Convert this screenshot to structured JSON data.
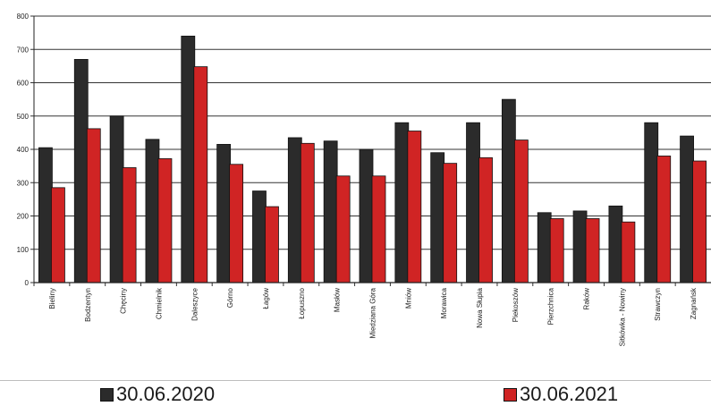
{
  "chart_data": {
    "type": "bar",
    "title": "",
    "xlabel": "",
    "ylabel": "",
    "ylim": [
      0,
      800
    ],
    "yticks": [
      0,
      100,
      200,
      300,
      400,
      500,
      600,
      700,
      800
    ],
    "grid": true,
    "legend_position": "bottom",
    "categories": [
      "Bieliny",
      "Bodzentyn",
      "Chęciny",
      "Chmielnik",
      "Daleszyce",
      "Górno",
      "Łagów",
      "Łopuszno",
      "Masłów",
      "Miedziana Góra",
      "Mniów",
      "Morawica",
      "Nowa Słupia",
      "Piekoszów",
      "Pierzchnica",
      "Raków",
      "Sitkówka - Nowiny",
      "Strawczyn",
      "Zagnańsk"
    ],
    "series": [
      {
        "name": "30.06.2020",
        "color": "#2b2b2b",
        "values": [
          405,
          670,
          500,
          430,
          740,
          415,
          275,
          435,
          425,
          400,
          480,
          390,
          480,
          550,
          210,
          215,
          230,
          480,
          440
        ]
      },
      {
        "name": "30.06.2021",
        "color": "#d02424",
        "values": [
          285,
          462,
          345,
          372,
          648,
          355,
          228,
          418,
          320,
          320,
          455,
          358,
          375,
          428,
          192,
          192,
          182,
          380,
          365
        ]
      }
    ]
  }
}
